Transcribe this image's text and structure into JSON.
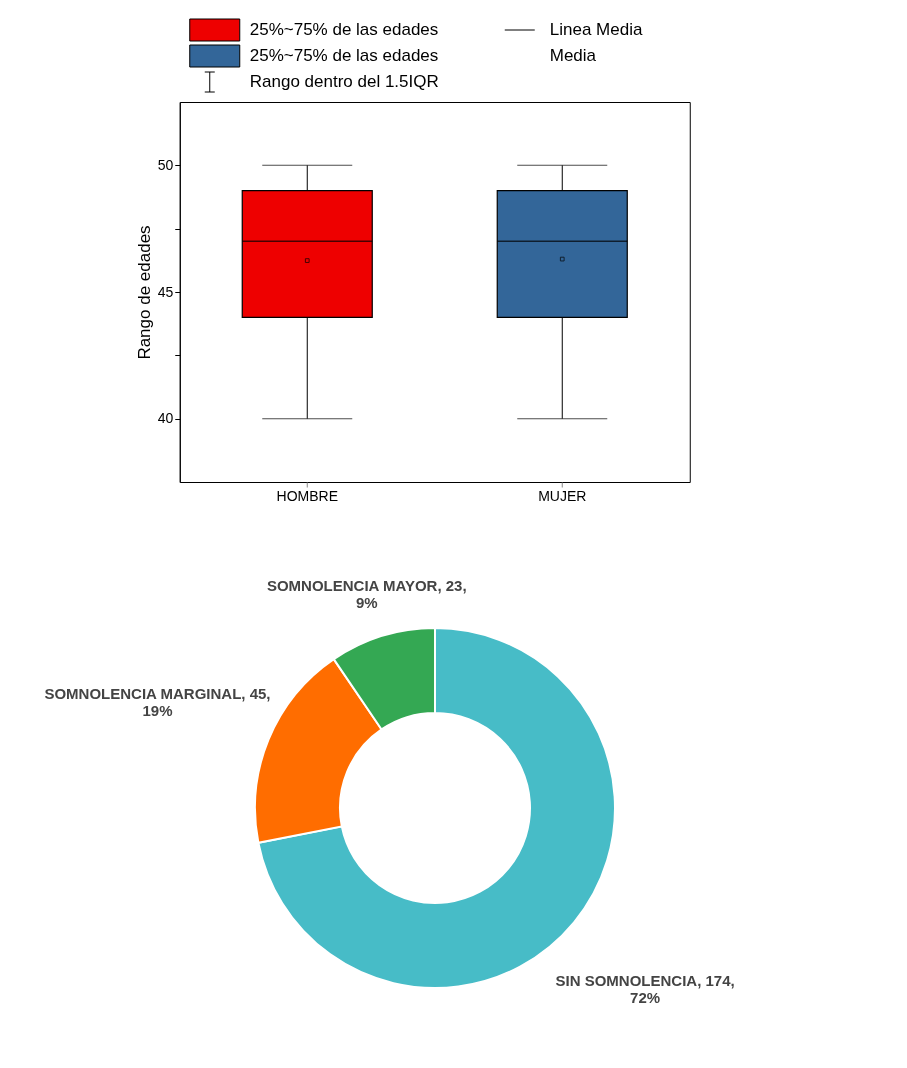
{
  "chart_data": [
    {
      "type": "box",
      "ylabel": "Rango de edades",
      "categories": [
        "HOMBRE",
        "MUJER"
      ],
      "ylim": [
        37.5,
        52.5
      ],
      "yticks": [
        40,
        {
          "value": 42.5,
          "label": null
        },
        45,
        {
          "value": 47.5,
          "label": null
        },
        50
      ],
      "grid": false,
      "legend": "top",
      "marker": "square",
      "series": [
        {
          "name": "25%~75% de las edades",
          "color": "#ee0000",
          "x": [
            "HOMBRE"
          ],
          "boxes": [
            {
              "low": 40,
              "q1": 44,
              "median": 47,
              "q3": 49,
              "high": 50,
              "mean": 46.24
            }
          ]
        },
        {
          "name": "25%~75% de las edades",
          "color": "#336699",
          "x": [
            "MUJER"
          ],
          "boxes": [
            {
              "low": 40,
              "q1": 44,
              "median": 47,
              "q3": 49,
              "high": 50,
              "mean": 46.3
            }
          ]
        }
      ],
      "annotations": [
        "Linea Media",
        "Media",
        "Rango dentro del 1.5IQR"
      ]
    },
    {
      "type": "donut",
      "categories": [
        "SIN SOMNOLENCIA",
        "SOMNOLENCIA MARGINAL",
        "SOMNOLENCIA MAYOR"
      ],
      "values": [
        174,
        45,
        23
      ],
      "colors": [
        "#47bcc7",
        "#ff6d00",
        "#34a853"
      ],
      "value_labels": [
        "174, 72%",
        "45, 19%",
        "23, 9%"
      ]
    }
  ]
}
